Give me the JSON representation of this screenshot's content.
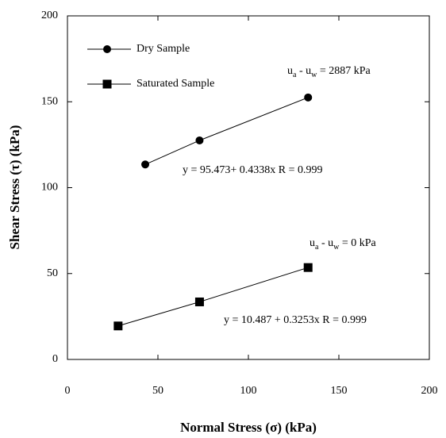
{
  "chart_data": {
    "type": "scatter",
    "xlabel": "Normal Stress (σ) (kPa)",
    "ylabel": "Shear Stress (τ) (kPa)",
    "xlim": [
      0,
      200
    ],
    "xticks": [
      0,
      50,
      100,
      150,
      200
    ],
    "ylim": [
      0,
      200
    ],
    "yticks": [
      0,
      50,
      100,
      150,
      200
    ],
    "legend": "upper left",
    "series": [
      {
        "name": "Dry Sample",
        "marker": "circle",
        "color": "#000000",
        "x": [
          43,
          73,
          133
        ],
        "values": [
          113.5,
          127.5,
          152.5
        ]
      },
      {
        "name": "Saturated Sample",
        "marker": "square",
        "color": "#000000",
        "x": [
          28,
          73,
          133
        ],
        "values": [
          19.5,
          33.5,
          53.5
        ]
      }
    ],
    "annotations": [
      {
        "parts": [
          "u",
          "a",
          " - u",
          "w",
          " = 2887 kPa"
        ],
        "equation": "y = 95.473+ 0.4338x  R = 0.999"
      },
      {
        "parts": [
          "u",
          "a",
          " - u",
          "w",
          " = 0 kPa"
        ],
        "equation": "y = 10.487 + 0.3253x   R = 0.999"
      }
    ]
  }
}
